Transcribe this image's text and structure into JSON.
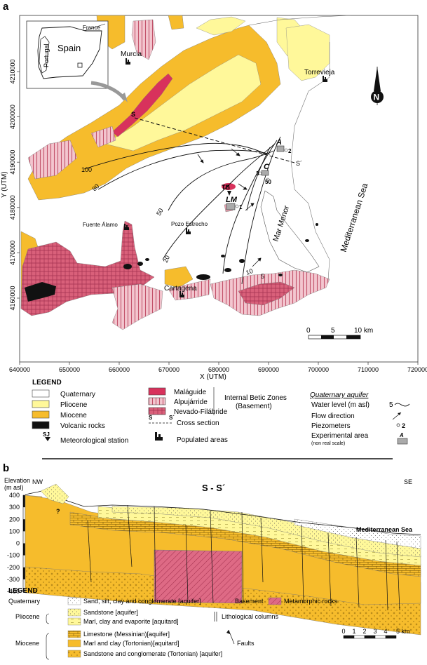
{
  "panel_a": {
    "label": "a",
    "x_ticks": [
      "640000",
      "650000",
      "660000",
      "670000",
      "680000",
      "690000",
      "700000",
      "710000",
      "720000"
    ],
    "y_ticks": [
      "4160000",
      "4170000",
      "4180000",
      "4190000",
      "4200000",
      "4210000"
    ],
    "xlabel": "X (UTM)",
    "ylabel": "Y (UTM)",
    "inset": {
      "spain": "Spain",
      "portugal": "Portugal",
      "france": "France"
    },
    "places": {
      "murcia": "Murcia",
      "torrevieja": "Torrevieja",
      "fuente_alamo": "Fuente Álamo",
      "pozo_estrecho": "Pozo Estrecho",
      "cartagena": "Cartagena"
    },
    "water_labels": {
      "mediterranean": "Mediterranean Sea",
      "mar_menor": "Mar Menor"
    },
    "north": "N",
    "section": {
      "start": "S",
      "end": "S´"
    },
    "contours": [
      "100",
      "80",
      "50",
      "20",
      "10",
      "5"
    ],
    "sites": {
      "a": "A",
      "c": "C",
      "lm": "LM",
      "tb": "TB",
      "p1": "1",
      "p2": "2",
      "p3": "3",
      "p50": "50"
    },
    "scalebar": {
      "zero": "0",
      "mid": "5",
      "end": "10 km"
    }
  },
  "legend_a": {
    "title": "LEGEND",
    "units": [
      {
        "label": "Quaternary",
        "color": "#ffffff"
      },
      {
        "label": "Pliocene",
        "color": "#fff89a"
      },
      {
        "label": "Miocene",
        "color": "#f6bc2c"
      },
      {
        "label": "Volcanic rocks",
        "color": "#111111"
      }
    ],
    "meteo": "Meteorological station",
    "meteo_symbol": "SJ",
    "basement_units": [
      {
        "label": "Maláguide",
        "color": "#d8325c"
      },
      {
        "label": "Alpujárride",
        "color": "#e9a2b0"
      },
      {
        "label": "Nevado-Filábride",
        "color": "#d9607a"
      }
    ],
    "cross_section": "Cross section",
    "cross_symbol_start": "S",
    "cross_symbol_end": "S´",
    "populated": "Populated areas",
    "internal_betic": "Internal Betic Zones",
    "basement_paren": "(Basement)",
    "aquifer_title": "Quaternary aquifer",
    "water_level": "Water level (m asl)",
    "water_level_num": "5",
    "flow": "Flow direction",
    "piezometers": "Piezometers",
    "piezo_num": "2",
    "experimental": "Experimental area",
    "experimental_note": "(non real scale)",
    "experimental_symbol": "A"
  },
  "panel_b": {
    "label": "b",
    "title": "S - S´",
    "elev_label_1": "Elevation",
    "elev_label_2": "(m asl)",
    "nw": "NW",
    "se": "SE",
    "y_ticks": [
      "400",
      "300",
      "200",
      "100",
      "0",
      "-100",
      "-200",
      "-300",
      "-400"
    ],
    "sea": "Mediterranean Sea",
    "question": "?"
  },
  "legend_b": {
    "title": "LEGEND",
    "quaternary": "Quaternary",
    "pliocene": "Pliocene",
    "miocene": "Miocene",
    "items": [
      "Sand, silt, clay and conglomerate [aquifer]",
      "Sandstone [aquifer]",
      "Marl, clay and evaporite [aquitard]",
      "Limestone (Messinian)[aquifer]",
      "Marl and clay (Tortonian)[aquitard]",
      "Sandstone and conglomerate (Tortonian) [aquifer]"
    ],
    "basement": "Basement",
    "metamorphic": "Metamorphic rocks",
    "columns": "Lithological columns",
    "faults": "Faults",
    "scale_ticks": [
      "0",
      "1",
      "2",
      "3",
      "4",
      "5 km"
    ]
  },
  "colors": {
    "quaternary": "#ffffff",
    "pliocene": "#fff89a",
    "miocene": "#f6bc2c",
    "malaguide": "#d8325c",
    "alpujarride": "#e9a2b0",
    "nevado": "#d9607a",
    "volcanic": "#111111"
  }
}
